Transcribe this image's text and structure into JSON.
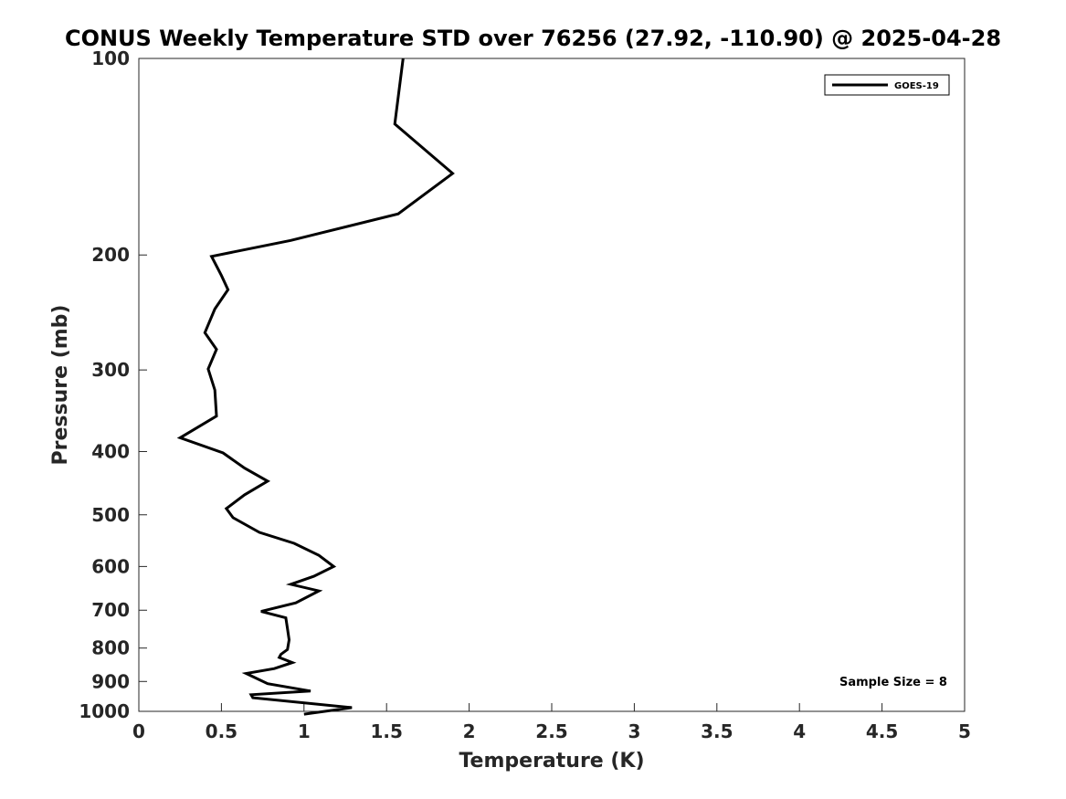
{
  "chart_data": {
    "type": "line",
    "title": "CONUS Weekly Temperature STD over 76256 (27.92, -110.90) @ 2025-04-28",
    "xlabel": "Temperature (K)",
    "ylabel": "Pressure (mb)",
    "xlim": [
      0,
      5
    ],
    "ylim": [
      1000,
      100
    ],
    "yscale": "log",
    "y_reversed": true,
    "grid": false,
    "legend_position": "top-right",
    "x_ticks": [
      "0",
      "0.5",
      "1",
      "1.5",
      "2",
      "2.5",
      "3",
      "3.5",
      "4",
      "4.5",
      "5"
    ],
    "x_tick_values": [
      0,
      0.5,
      1,
      1.5,
      2,
      2.5,
      3,
      3.5,
      4,
      4.5,
      5
    ],
    "y_ticks": [
      "100",
      "200",
      "300",
      "400",
      "500",
      "600",
      "700",
      "800",
      "900",
      "1000"
    ],
    "y_tick_values": [
      100,
      200,
      300,
      400,
      500,
      600,
      700,
      800,
      900,
      1000
    ],
    "series": [
      {
        "name": "GOES-19",
        "color": "#000000",
        "x": [
          1.6,
          1.55,
          1.9,
          1.57,
          0.92,
          0.44,
          0.5,
          0.54,
          0.46,
          0.4,
          0.47,
          0.42,
          0.46,
          0.47,
          0.25,
          0.51,
          0.64,
          0.78,
          0.64,
          0.53,
          0.57,
          0.73,
          0.94,
          1.09,
          1.18,
          1.06,
          0.92,
          1.09,
          0.95,
          0.74,
          0.89,
          0.9,
          0.91,
          0.9,
          0.86,
          0.85,
          0.93,
          0.82,
          0.65,
          0.78,
          1.04,
          0.68,
          0.69,
          1.29,
          1.0
        ],
        "y": [
          100,
          126,
          150,
          173,
          190,
          201,
          215,
          226,
          242,
          263,
          279,
          299,
          322,
          353,
          381,
          402,
          424,
          444,
          466,
          489,
          505,
          532,
          553,
          577,
          600,
          621,
          639,
          654,
          682,
          703,
          719,
          747,
          777,
          804,
          818,
          827,
          842,
          860,
          875,
          907,
          931,
          943,
          953,
          987,
          1010
        ]
      }
    ],
    "annotation": "Sample Size = 8"
  }
}
